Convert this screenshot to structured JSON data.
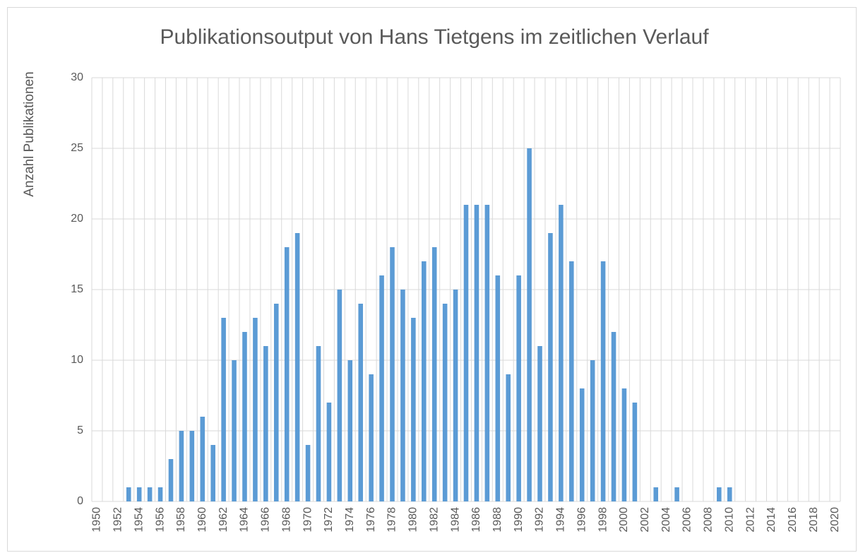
{
  "chart_data": {
    "type": "bar",
    "title": "Publikationsoutput von Hans Tietgens im zeitlichen Verlauf",
    "y_label": "Anzahl Publikationen",
    "categories": [
      "1950",
      null,
      "1952",
      null,
      "1954",
      null,
      "1956",
      null,
      "1958",
      null,
      "1960",
      null,
      "1962",
      null,
      "1964",
      null,
      "1966",
      null,
      "1968",
      null,
      "1970",
      null,
      "1972",
      null,
      "1974",
      null,
      "1976",
      null,
      "1978",
      null,
      "1980",
      null,
      "1982",
      null,
      "1984",
      null,
      "1986",
      null,
      "1988",
      null,
      "1990",
      null,
      "1992",
      null,
      "1994",
      null,
      "1996",
      null,
      "1998",
      null,
      "2000",
      null,
      "2002",
      null,
      "2004",
      null,
      "2006",
      null,
      "2008",
      null,
      "2010",
      null,
      "2012",
      null,
      "2014",
      null,
      "2016",
      null,
      "2018",
      null,
      "2020"
    ],
    "values": [
      0,
      0,
      0,
      1,
      1,
      1,
      1,
      3,
      5,
      5,
      6,
      4,
      13,
      10,
      12,
      13,
      11,
      14,
      18,
      19,
      4,
      11,
      7,
      15,
      10,
      14,
      9,
      16,
      18,
      15,
      13,
      17,
      18,
      14,
      15,
      21,
      21,
      21,
      16,
      9,
      16,
      25,
      11,
      19,
      21,
      17,
      8,
      10,
      17,
      12,
      8,
      7,
      0,
      1,
      0,
      1,
      0,
      0,
      0,
      1,
      1,
      0,
      0,
      0,
      0,
      0,
      0,
      0,
      0,
      0,
      0
    ],
    "color": "#5b9bd5",
    "ylim": [
      0,
      30
    ],
    "yticks": [
      0,
      5,
      10,
      15,
      20,
      25,
      30
    ],
    "grid": true
  }
}
